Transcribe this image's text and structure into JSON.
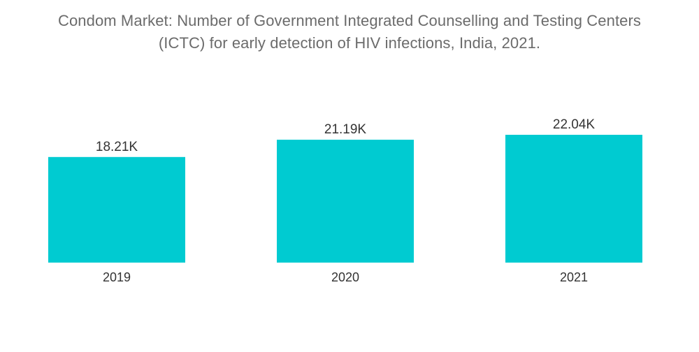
{
  "chart_data": {
    "type": "bar",
    "title_lines": [
      "Condom Market: Number of Government Integrated Counselling and Testing Centers",
      "(ICTC) for early detection of HIV infections, India, 2021."
    ],
    "categories": [
      "2019",
      "2020",
      "2021"
    ],
    "values": [
      18.21,
      21.19,
      22.04
    ],
    "value_labels": [
      "18.21K",
      "21.19K",
      "22.04K"
    ],
    "unit": "K",
    "xlabel": "",
    "ylabel": "",
    "ylim": [
      0,
      22.04
    ],
    "grid": false,
    "legend": "none"
  },
  "colors": {
    "bar": "#00CBD1",
    "title": "#6b6b6b",
    "label": "#333333"
  }
}
